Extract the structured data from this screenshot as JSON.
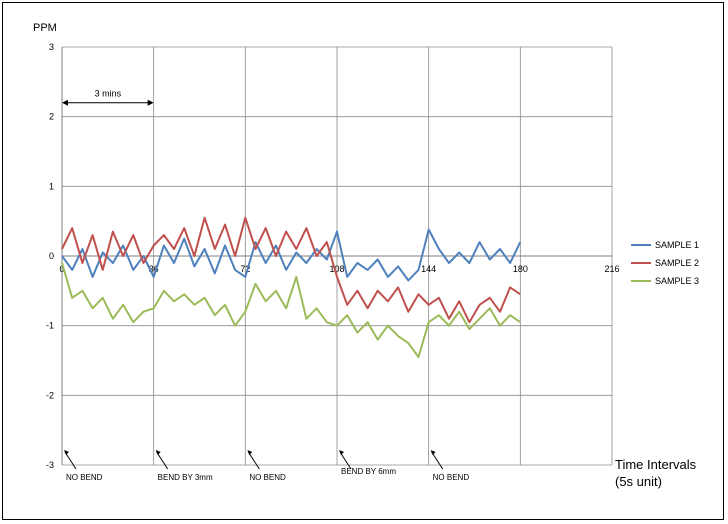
{
  "chart_data": {
    "type": "line",
    "title": "",
    "ylabel": "PPM",
    "xlabel": "Time Intervals",
    "xlabel_unit": "(5s unit)",
    "xlim": [
      0,
      216
    ],
    "ylim": [
      -3,
      3
    ],
    "xticks": [
      0,
      36,
      72,
      108,
      144,
      180,
      216
    ],
    "yticks": [
      3,
      2,
      1,
      0,
      -1,
      -2,
      -3
    ],
    "grid": true,
    "legend": "right",
    "span_label": "3 mins",
    "span": [
      0,
      36
    ],
    "annotations": [
      {
        "x": 0,
        "text": "NO BEND"
      },
      {
        "x": 36,
        "text": "BEND BY 3mm"
      },
      {
        "x": 72,
        "text": "NO BEND"
      },
      {
        "x": 108,
        "text": "BEND BY 6mm"
      },
      {
        "x": 144,
        "text": "NO BEND"
      }
    ],
    "series": [
      {
        "name": "SAMPLE 1",
        "color": "#4F81BD",
        "x": [
          0,
          4,
          8,
          12,
          16,
          20,
          24,
          28,
          32,
          36,
          40,
          44,
          48,
          52,
          56,
          60,
          64,
          68,
          72,
          76,
          80,
          84,
          88,
          92,
          96,
          100,
          104,
          108,
          112,
          116,
          120,
          124,
          128,
          132,
          136,
          140,
          144,
          148,
          152,
          156,
          160,
          164,
          168,
          172,
          176,
          180
        ],
        "y": [
          0,
          -0.2,
          0.1,
          -0.3,
          0.05,
          -0.1,
          0.15,
          -0.2,
          0.0,
          -0.3,
          0.15,
          -0.1,
          0.25,
          -0.15,
          0.1,
          -0.25,
          0.15,
          -0.2,
          -0.3,
          0.2,
          -0.1,
          0.15,
          -0.2,
          0.05,
          -0.1,
          0.1,
          -0.05,
          0.35,
          -0.3,
          -0.1,
          -0.2,
          -0.05,
          -0.3,
          -0.15,
          -0.35,
          -0.2,
          0.38,
          0.1,
          -0.1,
          0.05,
          -0.1,
          0.2,
          -0.05,
          0.1,
          -0.1,
          0.2
        ]
      },
      {
        "name": "SAMPLE 2",
        "color": "#C0504D",
        "x": [
          0,
          4,
          8,
          12,
          16,
          20,
          24,
          28,
          32,
          36,
          40,
          44,
          48,
          52,
          56,
          60,
          64,
          68,
          72,
          76,
          80,
          84,
          88,
          92,
          96,
          100,
          104,
          108,
          112,
          116,
          120,
          124,
          128,
          132,
          136,
          140,
          144,
          148,
          152,
          156,
          160,
          164,
          168,
          172,
          176,
          180
        ],
        "y": [
          0.1,
          0.4,
          -0.1,
          0.3,
          -0.2,
          0.35,
          0.0,
          0.3,
          -0.1,
          0.15,
          0.3,
          0.1,
          0.4,
          0.0,
          0.55,
          0.1,
          0.45,
          0.0,
          0.55,
          0.1,
          0.4,
          0.0,
          0.35,
          0.1,
          0.4,
          0.0,
          0.2,
          -0.3,
          -0.7,
          -0.5,
          -0.75,
          -0.5,
          -0.65,
          -0.45,
          -0.8,
          -0.55,
          -0.7,
          -0.6,
          -0.9,
          -0.65,
          -0.95,
          -0.7,
          -0.6,
          -0.8,
          -0.45,
          -0.55
        ]
      },
      {
        "name": "SAMPLE 3",
        "color": "#9BBB59",
        "x": [
          0,
          4,
          8,
          12,
          16,
          20,
          24,
          28,
          32,
          36,
          40,
          44,
          48,
          52,
          56,
          60,
          64,
          68,
          72,
          76,
          80,
          84,
          88,
          92,
          96,
          100,
          104,
          108,
          112,
          116,
          120,
          124,
          128,
          132,
          136,
          140,
          144,
          148,
          152,
          156,
          160,
          164,
          168,
          172,
          176,
          180
        ],
        "y": [
          -0.1,
          -0.6,
          -0.5,
          -0.75,
          -0.6,
          -0.9,
          -0.7,
          -0.95,
          -0.8,
          -0.75,
          -0.5,
          -0.65,
          -0.55,
          -0.7,
          -0.6,
          -0.85,
          -0.7,
          -1.0,
          -0.8,
          -0.4,
          -0.65,
          -0.5,
          -0.75,
          -0.3,
          -0.9,
          -0.75,
          -0.95,
          -1.0,
          -0.85,
          -1.1,
          -0.95,
          -1.2,
          -1.0,
          -1.15,
          -1.25,
          -1.45,
          -0.95,
          -0.85,
          -1.0,
          -0.8,
          -1.05,
          -0.9,
          -0.75,
          -1.0,
          -0.85,
          -0.95
        ]
      }
    ]
  }
}
